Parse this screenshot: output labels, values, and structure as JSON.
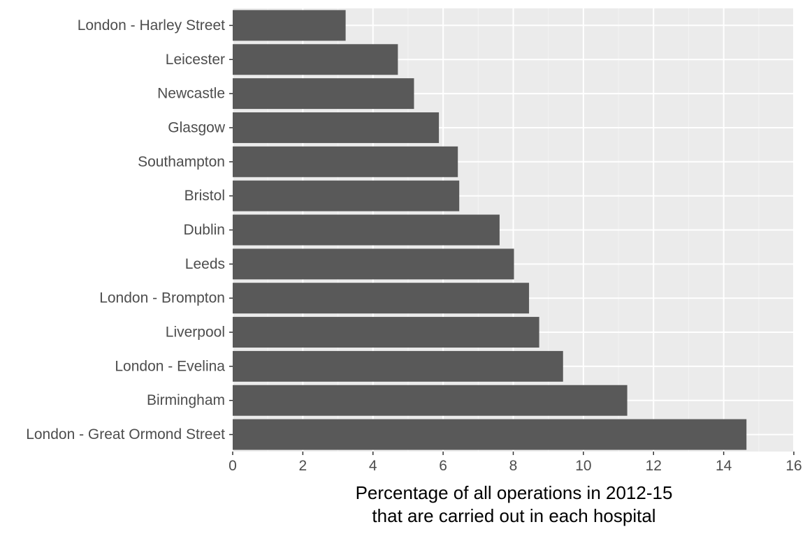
{
  "chart_data": {
    "type": "bar",
    "orientation": "horizontal",
    "title": "",
    "xlabel": [
      "Percentage of all operations in 2012-15",
      "that are carried out in each hospital"
    ],
    "ylabel": "",
    "categories": [
      "London - Great Ormond Street",
      "Birmingham",
      "London - Evelina",
      "Liverpool",
      "London - Brompton",
      "Leeds",
      "Dublin",
      "Bristol",
      "Southampton",
      "Glasgow",
      "Newcastle",
      "Leicester",
      "London - Harley Street"
    ],
    "values": [
      14.65,
      11.25,
      9.42,
      8.74,
      8.45,
      8.02,
      7.61,
      6.46,
      6.42,
      5.88,
      5.17,
      4.71,
      3.22
    ],
    "xlim": [
      0,
      16
    ],
    "xticks": [
      0,
      2,
      4,
      6,
      8,
      10,
      12,
      14,
      16
    ],
    "grid": true,
    "legend": "none",
    "colors": {
      "bar": "#595959",
      "panel_background": "#ebebeb",
      "grid_major": "#ffffff",
      "grid_minor": "#f2f2f2",
      "tick_text": "#4d4d4d",
      "axis_title": "#000000",
      "tick_mark": "#333333"
    }
  }
}
